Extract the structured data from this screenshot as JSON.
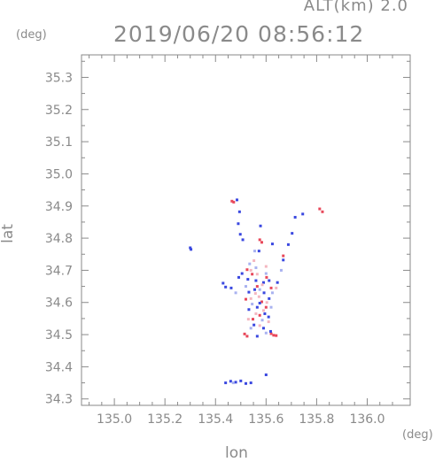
{
  "header": {
    "alt_label": "ALT(km) 2.0",
    "timestamp": "2019/06/20 08:56:12"
  },
  "axes": {
    "x_unit": "(deg)",
    "y_unit": "(deg)",
    "xlabel": "lon",
    "ylabel": "lat"
  },
  "chart_data": {
    "type": "scatter",
    "xlabel": "lon",
    "ylabel": "lat",
    "xlim": [
      134.87,
      136.17
    ],
    "ylim": [
      34.28,
      35.37
    ],
    "x_ticks": [
      "135.0",
      "135.2",
      "135.4",
      "135.6",
      "135.8",
      "136.0"
    ],
    "y_ticks": [
      "34.3",
      "34.4",
      "34.5",
      "34.6",
      "34.7",
      "34.8",
      "34.9",
      "35.0",
      "35.1",
      "35.2",
      "35.3"
    ],
    "grid": false,
    "colors": {
      "positive": "#e8485a",
      "negative": "#3a48e0",
      "weak_positive": "#f4b6c0",
      "weak_negative": "#a9b2f0",
      "axis": "#8a8a8a"
    },
    "series": [
      {
        "color_key": "positive",
        "points": [
          [
            135.465,
            34.915
          ],
          [
            135.472,
            34.912
          ],
          [
            135.575,
            34.795
          ],
          [
            135.583,
            34.787
          ],
          [
            135.668,
            34.745
          ],
          [
            135.823,
            34.882
          ],
          [
            135.812,
            34.891
          ],
          [
            135.525,
            34.702
          ],
          [
            135.545,
            34.688
          ],
          [
            135.602,
            34.678
          ],
          [
            135.565,
            34.65
          ],
          [
            135.62,
            34.645
          ],
          [
            135.52,
            34.61
          ],
          [
            135.583,
            34.602
          ],
          [
            135.6,
            34.585
          ],
          [
            135.515,
            34.502
          ],
          [
            135.525,
            34.495
          ],
          [
            135.63,
            34.498
          ],
          [
            135.62,
            34.503
          ],
          [
            135.64,
            34.497
          ],
          [
            135.575,
            34.56
          ],
          [
            135.548,
            34.548
          ]
        ]
      },
      {
        "color_key": "negative",
        "points": [
          [
            135.3,
            34.77
          ],
          [
            135.303,
            34.765
          ],
          [
            135.485,
            34.919
          ],
          [
            135.495,
            34.882
          ],
          [
            135.49,
            34.845
          ],
          [
            135.498,
            34.812
          ],
          [
            135.508,
            34.795
          ],
          [
            135.578,
            34.838
          ],
          [
            135.572,
            34.76
          ],
          [
            135.625,
            34.782
          ],
          [
            135.715,
            34.865
          ],
          [
            135.745,
            34.875
          ],
          [
            135.703,
            34.815
          ],
          [
            135.688,
            34.78
          ],
          [
            135.668,
            34.732
          ],
          [
            135.43,
            34.66
          ],
          [
            135.44,
            34.648
          ],
          [
            135.462,
            34.645
          ],
          [
            135.492,
            34.678
          ],
          [
            135.505,
            34.69
          ],
          [
            135.528,
            34.672
          ],
          [
            135.56,
            34.668
          ],
          [
            135.59,
            34.662
          ],
          [
            135.612,
            34.668
          ],
          [
            135.645,
            34.662
          ],
          [
            135.532,
            34.632
          ],
          [
            135.555,
            34.64
          ],
          [
            135.592,
            34.63
          ],
          [
            135.612,
            34.612
          ],
          [
            135.575,
            34.598
          ],
          [
            135.532,
            34.578
          ],
          [
            135.565,
            34.585
          ],
          [
            135.595,
            34.565
          ],
          [
            135.61,
            34.555
          ],
          [
            135.552,
            34.53
          ],
          [
            135.59,
            34.52
          ],
          [
            135.618,
            34.51
          ],
          [
            135.565,
            34.495
          ],
          [
            135.44,
            34.35
          ],
          [
            135.46,
            34.355
          ],
          [
            135.48,
            34.352
          ],
          [
            135.5,
            34.356
          ],
          [
            135.52,
            34.348
          ],
          [
            135.54,
            34.35
          ],
          [
            135.6,
            34.375
          ]
        ]
      },
      {
        "color_key": "weak_positive",
        "points": [
          [
            135.54,
            34.7
          ],
          [
            135.565,
            34.688
          ],
          [
            135.585,
            34.655
          ],
          [
            135.558,
            34.628
          ],
          [
            135.54,
            34.612
          ],
          [
            135.572,
            34.618
          ],
          [
            135.603,
            34.6
          ],
          [
            135.59,
            34.575
          ],
          [
            135.56,
            34.565
          ],
          [
            135.53,
            34.548
          ],
          [
            135.61,
            34.54
          ],
          [
            135.575,
            34.528
          ],
          [
            135.64,
            34.645
          ],
          [
            135.6,
            34.712
          ],
          [
            135.552,
            34.73
          ]
        ]
      },
      {
        "color_key": "weak_negative",
        "points": [
          [
            135.535,
            34.72
          ],
          [
            135.56,
            34.708
          ],
          [
            135.6,
            34.69
          ],
          [
            135.52,
            34.65
          ],
          [
            135.575,
            34.64
          ],
          [
            135.625,
            34.63
          ],
          [
            135.545,
            34.595
          ],
          [
            135.62,
            34.585
          ],
          [
            135.585,
            34.545
          ],
          [
            135.54,
            34.52
          ],
          [
            135.6,
            34.505
          ],
          [
            135.66,
            34.7
          ],
          [
            135.48,
            34.63
          ],
          [
            135.555,
            34.76
          ],
          [
            135.47,
            34.35
          ]
        ]
      }
    ]
  }
}
